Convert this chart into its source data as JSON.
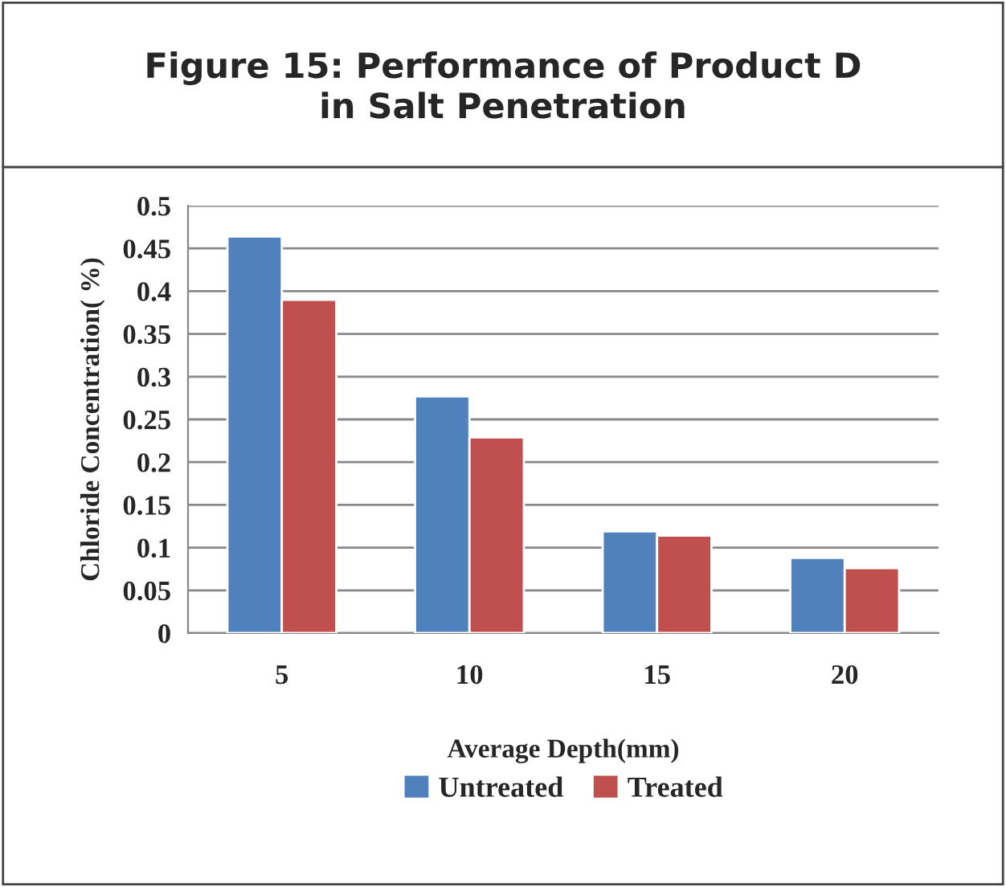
{
  "chart_data": {
    "type": "bar",
    "title": "Figure 15: Performance of Product D\nin Salt Penetration",
    "xlabel": "Average Depth(mm)",
    "ylabel": "Chloride Concentration( %)",
    "categories": [
      "5",
      "10",
      "15",
      "20"
    ],
    "series": [
      {
        "name": "Untreated",
        "color": "#4f81bd",
        "values": [
          0.464,
          0.277,
          0.119,
          0.088
        ]
      },
      {
        "name": "Treated",
        "color": "#c0504d",
        "values": [
          0.39,
          0.229,
          0.114,
          0.076
        ]
      }
    ],
    "ylim": [
      0,
      0.5
    ],
    "yticks": [
      0,
      0.05,
      0.1,
      0.15,
      0.2,
      0.25,
      0.3,
      0.35,
      0.4,
      0.45,
      0.5
    ],
    "grid": "y",
    "legend": "bottom"
  }
}
